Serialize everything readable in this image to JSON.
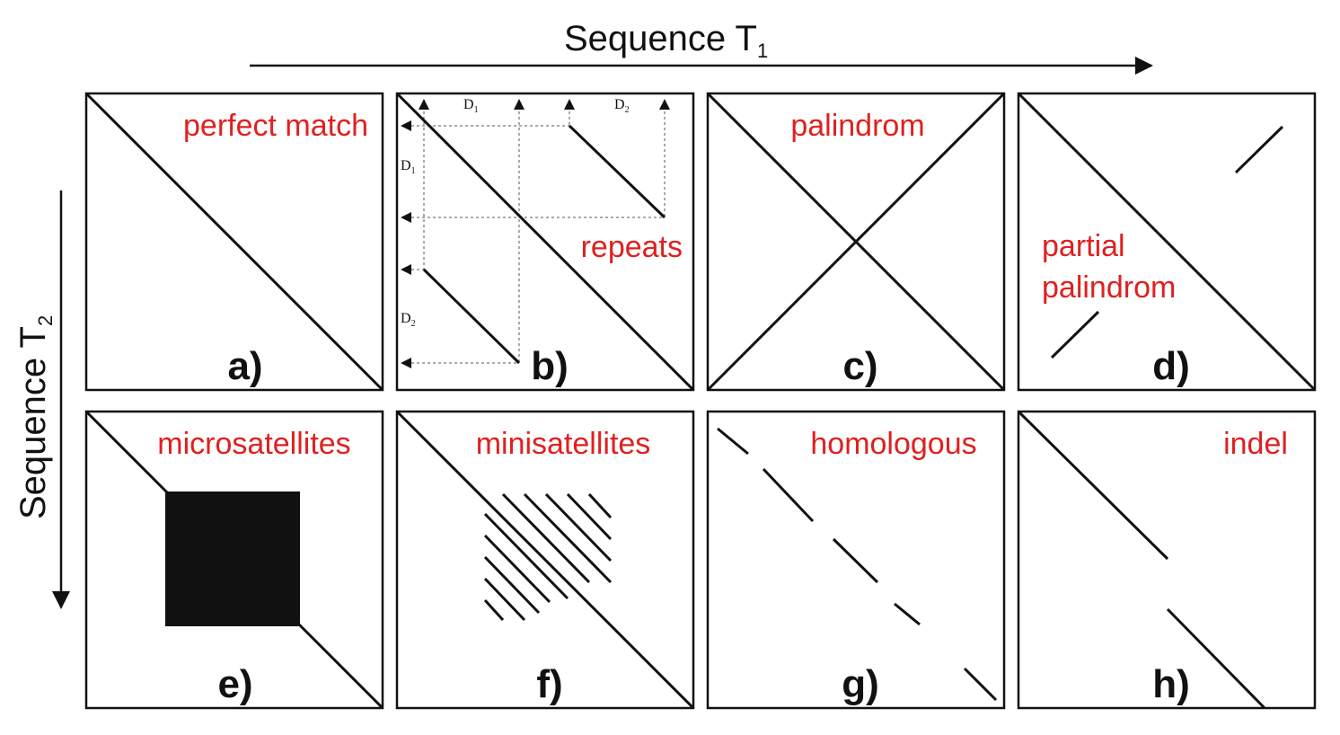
{
  "axes": {
    "top_label": "Sequence T",
    "top_subscript": "1",
    "left_label": "Sequence T",
    "left_subscript": "2"
  },
  "panels": [
    {
      "letter": "a)",
      "label": "perfect match"
    },
    {
      "letter": "b)",
      "label": "repeats",
      "distances": {
        "d1": "D",
        "d1_sub": "1",
        "d2": "D",
        "d2_sub": "2"
      }
    },
    {
      "letter": "c)",
      "label": "palindrom"
    },
    {
      "letter": "d)",
      "label_line1": "partial",
      "label_line2": "palindrom"
    },
    {
      "letter": "e)",
      "label": "microsatellites"
    },
    {
      "letter": "f)",
      "label": "minisatellites"
    },
    {
      "letter": "g)",
      "label": "homologous"
    },
    {
      "letter": "h)",
      "label": "indel"
    }
  ],
  "colors": {
    "label": "#e02020",
    "ink": "#111111"
  }
}
